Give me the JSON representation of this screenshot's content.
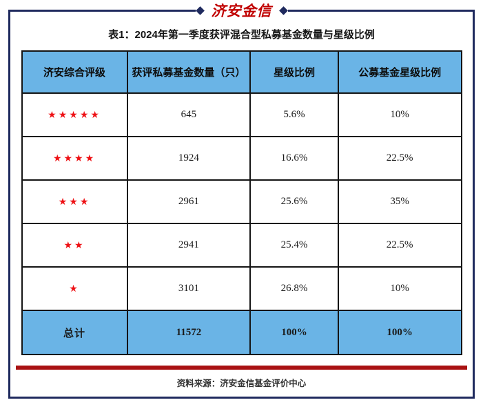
{
  "logo": {
    "text": "济安金信"
  },
  "title": "表1：2024年第一季度获评混合型私募基金数量与星级比例",
  "table": {
    "headers": {
      "rating": "济安综合评级",
      "count": "获评私募基金数量（只）",
      "star_ratio": "星级比例",
      "public_star_ratio": "公募基金星级比例"
    },
    "rows": [
      {
        "stars": "★★★★★",
        "count": "645",
        "star_ratio": "5.6%",
        "public_star_ratio": "10%"
      },
      {
        "stars": "★★★★",
        "count": "1924",
        "star_ratio": "16.6%",
        "public_star_ratio": "22.5%"
      },
      {
        "stars": "★★★",
        "count": "2961",
        "star_ratio": "25.6%",
        "public_star_ratio": "35%"
      },
      {
        "stars": "★★",
        "count": "2941",
        "star_ratio": "25.4%",
        "public_star_ratio": "22.5%"
      },
      {
        "stars": "★",
        "count": "3101",
        "star_ratio": "26.8%",
        "public_star_ratio": "10%"
      }
    ],
    "total": {
      "label": "总计",
      "count": "11572",
      "star_ratio": "100%",
      "public_star_ratio": "100%"
    }
  },
  "footer": {
    "source": "资料来源：济安金信基金评价中心"
  },
  "colors": {
    "frame_border": "#1f2a5e",
    "header_fill": "#6ab4e6",
    "star_red": "#ee1014",
    "logo_red": "#c00000",
    "bar_red": "#a91112",
    "cell_border": "#141414"
  }
}
